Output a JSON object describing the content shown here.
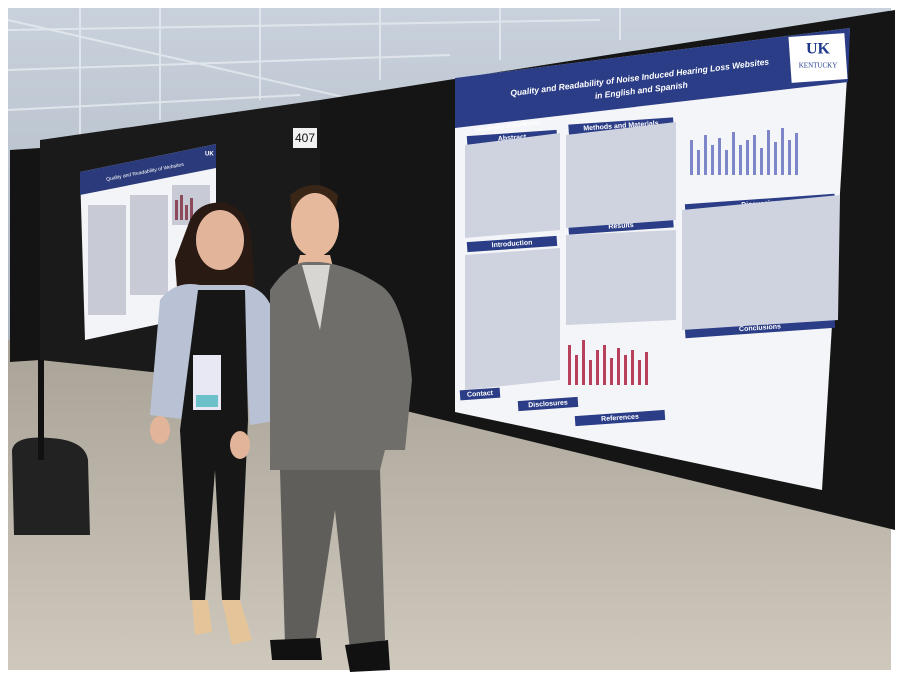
{
  "booth_number": "407",
  "main_poster": {
    "title_line1": "Quality and Readability of Noise Induced Hearing Loss Websites",
    "title_line2": "in English and Spanish",
    "logo": "UK",
    "logo_sub": "KENTUCKY",
    "university": "University of Kentucky",
    "sections": [
      "Abstract",
      "Methods and Materials",
      "Introduction",
      "Results",
      "Discussion",
      "Conclusions",
      "Contact",
      "Disclosures",
      "References"
    ]
  },
  "left_poster": {
    "title": "Quality and Readability of Websites",
    "logo": "UK"
  }
}
